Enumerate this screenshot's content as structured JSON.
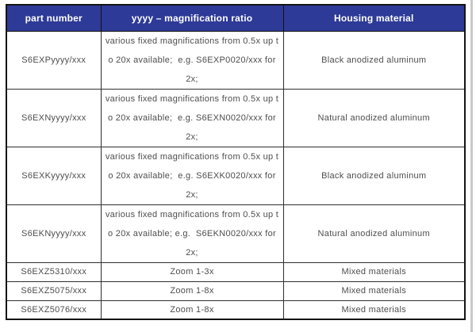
{
  "page": {
    "background_color": "#ffffff",
    "edge_line_color": "#c9c9c9"
  },
  "table": {
    "header": {
      "bg_color": "#2e3a97",
      "text_color": "#ffffff",
      "columns": [
        "part number",
        "yyyy – magnification ratio",
        "Housing material"
      ]
    },
    "body_text_color": "#4d4d4d",
    "border_color": "#141414",
    "rows": [
      {
        "part": "S6EXPyyyy/xxx",
        "ratio": "various fixed magnifications from 0.5x up t\no 20x available;  e.g. S6EXP0020/xxx for\n2x;",
        "material": "Black anodized aluminum"
      },
      {
        "part": "S6EXNyyyy/xxx",
        "ratio": "various fixed magnifications from 0.5x up t\no 20x available;  e.g. S6EXN0020/xxx for\n2x;",
        "material": "Natural anodized aluminum"
      },
      {
        "part": "S6EXKyyyy/xxx",
        "ratio": "various fixed magnifications from 0.5x up t\no 20x available;  e.g. S6EXK0020/xxx for\n2x;",
        "material": "Black anodized aluminum"
      },
      {
        "part": "S6EKNyyyy/xxx",
        "ratio": "various fixed magnifications from 0.5x up t\no 20x available; e.g.  S6EKN0020/xxx for\n2x;",
        "material": "Natural anodized aluminum"
      },
      {
        "part": "S6EXZ5310/xxx",
        "ratio": "Zoom 1-3x",
        "material": "Mixed materials"
      },
      {
        "part": "S6EXZ5075/xxx",
        "ratio": "Zoom 1-8x",
        "material": "Mixed materials"
      },
      {
        "part": "S6EXZ5076/xxx",
        "ratio": "Zoom 1-8x",
        "material": "Mixed materials"
      }
    ]
  }
}
